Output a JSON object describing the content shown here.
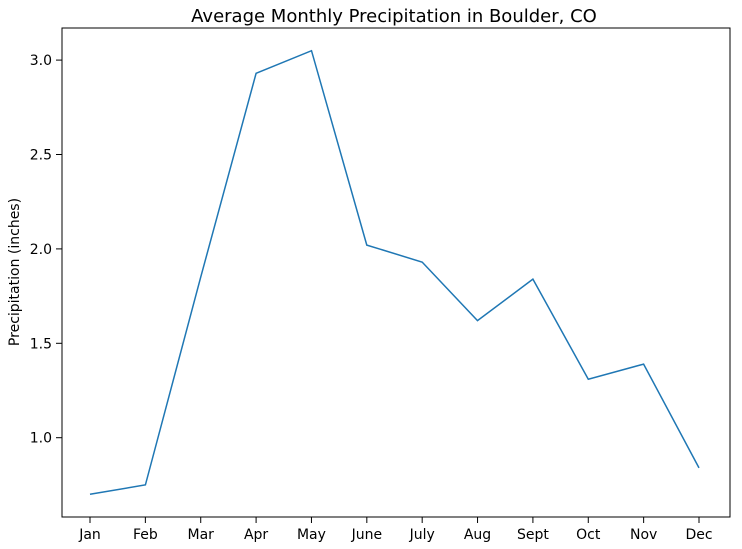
{
  "chart_data": {
    "type": "line",
    "title": "Average Monthly Precipitation in Boulder, CO",
    "xlabel": "",
    "ylabel": "Precipitation (inches)",
    "categories": [
      "Jan",
      "Feb",
      "Mar",
      "Apr",
      "May",
      "June",
      "July",
      "Aug",
      "Sept",
      "Oct",
      "Nov",
      "Dec"
    ],
    "series": [
      {
        "values": [
          0.7,
          0.75,
          1.85,
          2.93,
          3.05,
          2.02,
          1.93,
          1.62,
          1.84,
          1.31,
          1.39,
          0.84
        ]
      }
    ],
    "yticks": [
      "1.0",
      "1.5",
      "2.0",
      "2.5",
      "3.0"
    ],
    "ylim": [
      0.58,
      3.17
    ],
    "grid": false,
    "legend": "none",
    "line_color": "#1f77b4"
  }
}
